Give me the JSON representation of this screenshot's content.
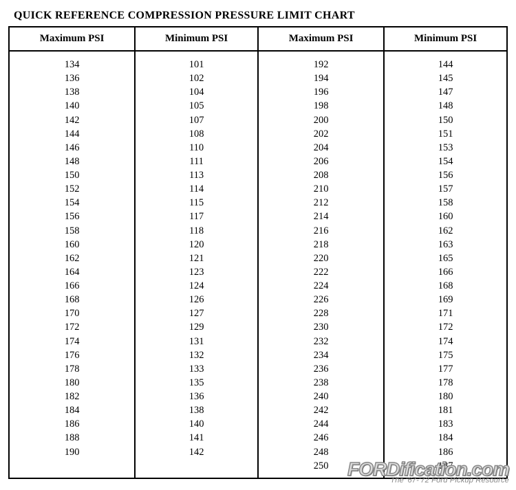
{
  "title": "QUICK REFERENCE COMPRESSION PRESSURE LIMIT CHART",
  "columns": [
    "Maximum PSI",
    "Minimum PSI",
    "Maximum PSI",
    "Minimum PSI"
  ],
  "rows": [
    [
      "134",
      "101",
      "192",
      "144"
    ],
    [
      "136",
      "102",
      "194",
      "145"
    ],
    [
      "138",
      "104",
      "196",
      "147"
    ],
    [
      "140",
      "105",
      "198",
      "148"
    ],
    [
      "142",
      "107",
      "200",
      "150"
    ],
    [
      "144",
      "108",
      "202",
      "151"
    ],
    [
      "146",
      "110",
      "204",
      "153"
    ],
    [
      "148",
      "111",
      "206",
      "154"
    ],
    [
      "150",
      "113",
      "208",
      "156"
    ],
    [
      "152",
      "114",
      "210",
      "157"
    ],
    [
      "154",
      "115",
      "212",
      "158"
    ],
    [
      "156",
      "117",
      "214",
      "160"
    ],
    [
      "158",
      "118",
      "216",
      "162"
    ],
    [
      "160",
      "120",
      "218",
      "163"
    ],
    [
      "162",
      "121",
      "220",
      "165"
    ],
    [
      "164",
      "123",
      "222",
      "166"
    ],
    [
      "166",
      "124",
      "224",
      "168"
    ],
    [
      "168",
      "126",
      "226",
      "169"
    ],
    [
      "170",
      "127",
      "228",
      "171"
    ],
    [
      "172",
      "129",
      "230",
      "172"
    ],
    [
      "174",
      "131",
      "232",
      "174"
    ],
    [
      "176",
      "132",
      "234",
      "175"
    ],
    [
      "178",
      "133",
      "236",
      "177"
    ],
    [
      "180",
      "135",
      "238",
      "178"
    ],
    [
      "182",
      "136",
      "240",
      "180"
    ],
    [
      "184",
      "138",
      "242",
      "181"
    ],
    [
      "186",
      "140",
      "244",
      "183"
    ],
    [
      "188",
      "141",
      "246",
      "184"
    ],
    [
      "190",
      "142",
      "248",
      "186"
    ],
    [
      "",
      "",
      "250",
      "187"
    ]
  ],
  "watermark": {
    "main": "FORDification.com",
    "sub": "The '67-'72 Ford Pickup Resource"
  },
  "style": {
    "background_color": "#ffffff",
    "border_color": "#000000",
    "font_family": "Times New Roman",
    "title_fontsize": 16,
    "header_fontsize": 15,
    "cell_fontsize": 14.5,
    "column_widths_pct": [
      25,
      25,
      25,
      25
    ]
  }
}
